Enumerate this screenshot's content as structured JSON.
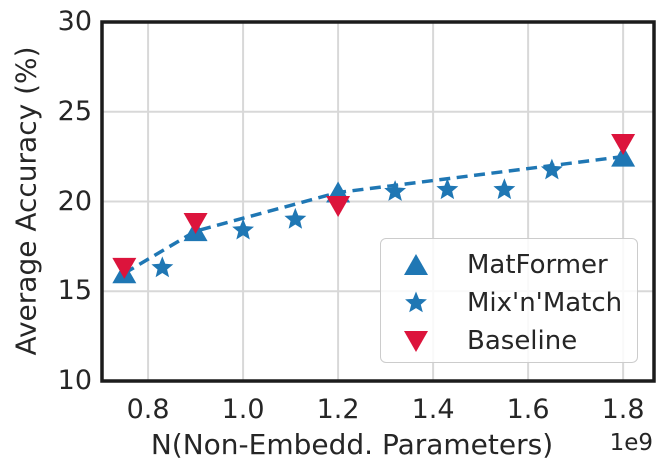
{
  "figure": {
    "background": "#ffffff",
    "text_color": "#262626",
    "spine_color": "#1c1c1c",
    "grid_color": "#d8d8d8",
    "legend_border_color": "#cccccc"
  },
  "chart_data": {
    "type": "scatter",
    "title": "",
    "xlabel": "N(Non-Embedd. Parameters)",
    "ylabel": "Average Accuracy (%)",
    "x_offset_text": "1e9",
    "xlim": [
      0.703,
      1.865
    ],
    "ylim": [
      10,
      30
    ],
    "xticks": [
      0.8,
      1.0,
      1.2,
      1.4,
      1.6,
      1.8
    ],
    "xtick_labels": [
      "0.8",
      "1.0",
      "1.2",
      "1.4",
      "1.6",
      "1.8"
    ],
    "yticks": [
      10,
      15,
      20,
      25,
      30
    ],
    "ytick_labels": [
      "10",
      "15",
      "20",
      "25",
      "30"
    ],
    "grid": true,
    "legend_position": "lower right",
    "series": [
      {
        "name": "MatFormer",
        "marker": "triangle-up",
        "color": "#1f77b4",
        "line": "dashed",
        "x": [
          0.75,
          0.9,
          1.2,
          1.8
        ],
        "y": [
          16.0,
          18.35,
          20.5,
          22.5
        ]
      },
      {
        "name": "Mix'n'Match",
        "marker": "star",
        "color": "#1f77b4",
        "line": "none",
        "x": [
          0.83,
          1.0,
          1.11,
          1.32,
          1.43,
          1.55,
          1.65
        ],
        "y": [
          16.3,
          18.4,
          19.0,
          20.55,
          20.65,
          20.65,
          21.75
        ]
      },
      {
        "name": "Baseline",
        "marker": "triangle-down",
        "color": "#dc143c",
        "line": "none",
        "x": [
          0.75,
          0.9,
          1.2,
          1.8
        ],
        "y": [
          16.3,
          18.8,
          19.75,
          23.2
        ]
      }
    ]
  }
}
